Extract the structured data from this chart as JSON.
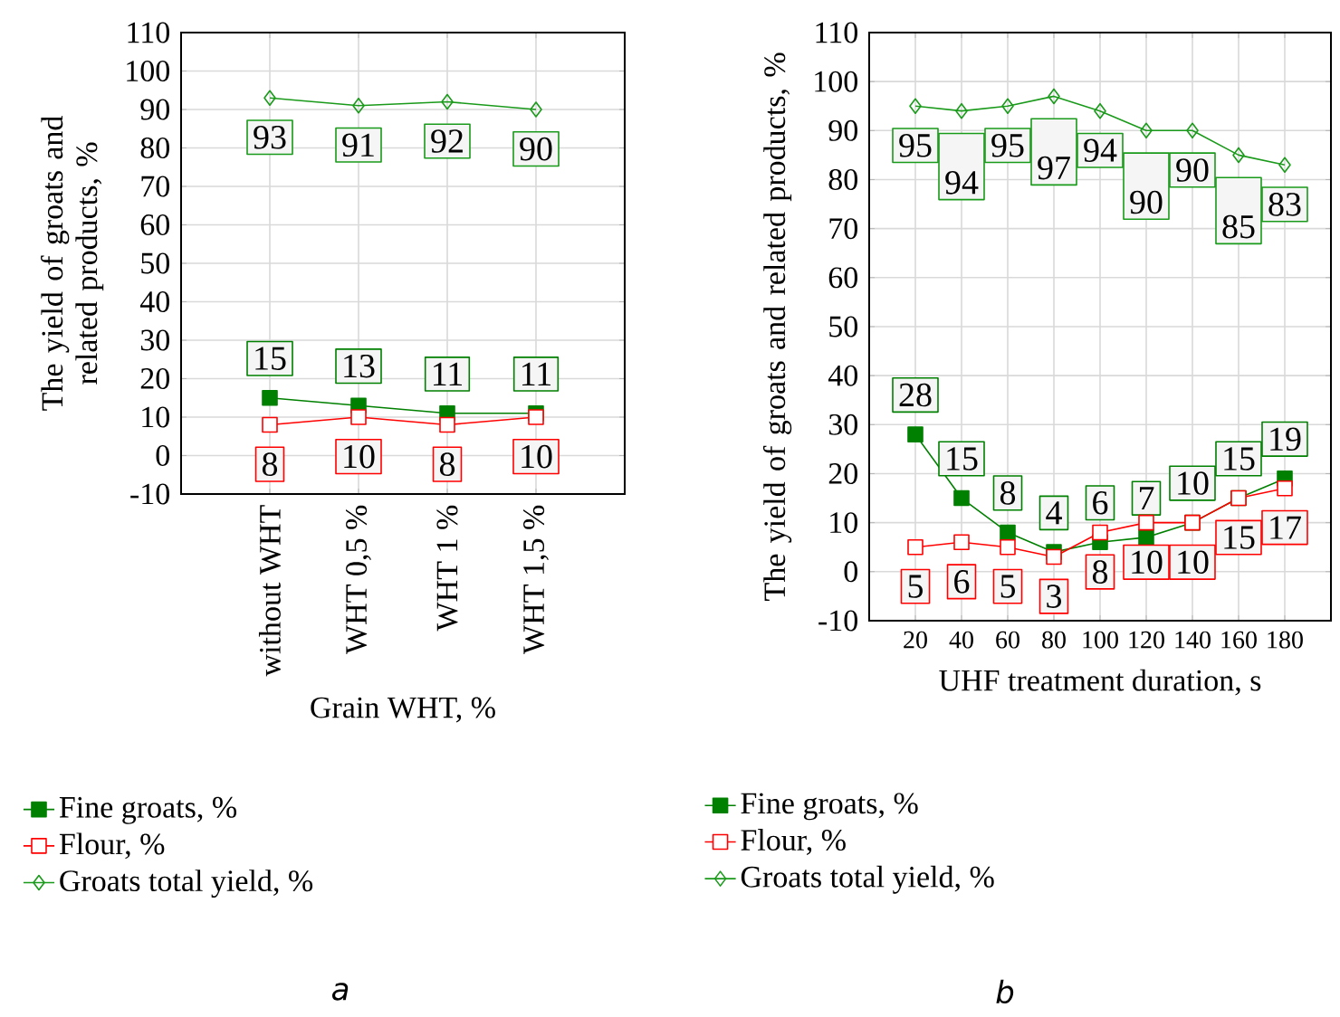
{
  "chart_data": [
    {
      "type": "line",
      "xlabel": "Grain WHT, %",
      "ylabel": "The yield of groats and related products, %",
      "categories": [
        "without WHT",
        "WHT  0,5 %",
        "WHT  1 %",
        "WHT  1,5 %"
      ],
      "ylim": [
        -10,
        110
      ],
      "yticks": [
        -10,
        0,
        10,
        20,
        30,
        40,
        50,
        60,
        70,
        80,
        90,
        100,
        110
      ],
      "grid": true,
      "legend": "bottom",
      "data_labels": true,
      "annotations": [
        "*a*"
      ],
      "series": [
        {
          "name": "Fine groats, %",
          "color": "#008000",
          "marker": "square",
          "values": [
            15,
            13,
            11,
            11
          ]
        },
        {
          "name": "Flour, %",
          "color": "#ff0000",
          "marker": "square",
          "values": [
            8,
            10,
            8,
            10
          ]
        },
        {
          "name": "Groats total yield, %",
          "color": "#1a9a1a",
          "marker": "diamond",
          "values": [
            93,
            91,
            92,
            90
          ]
        }
      ]
    },
    {
      "type": "line",
      "xlabel": "UHF treatment duration, s",
      "ylabel": "The yield of groats and related products, %",
      "x": [
        20,
        40,
        60,
        80,
        100,
        120,
        140,
        160,
        180
      ],
      "xlim": [
        0,
        200
      ],
      "xticks": [
        20,
        40,
        60,
        80,
        100,
        120,
        140,
        160,
        180
      ],
      "ylim": [
        -10,
        110
      ],
      "yticks": [
        -10,
        0,
        10,
        20,
        30,
        40,
        50,
        60,
        70,
        80,
        90,
        100,
        110
      ],
      "grid": true,
      "legend": "bottom",
      "data_labels": true,
      "annotations": [
        "*b*"
      ],
      "series": [
        {
          "name": "Fine groats, %",
          "color": "#008000",
          "marker": "square",
          "values": [
            28,
            15,
            8,
            4,
            6,
            7,
            10,
            15,
            19
          ]
        },
        {
          "name": "Flour, %",
          "color": "#ff0000",
          "marker": "square",
          "values": [
            5,
            6,
            5,
            3,
            8,
            10,
            10,
            15,
            17
          ]
        },
        {
          "name": "Groats total yield, %",
          "color": "#1a9a1a",
          "marker": "diamond",
          "values": [
            95,
            94,
            95,
            97,
            94,
            90,
            90,
            85,
            83
          ]
        }
      ]
    }
  ]
}
